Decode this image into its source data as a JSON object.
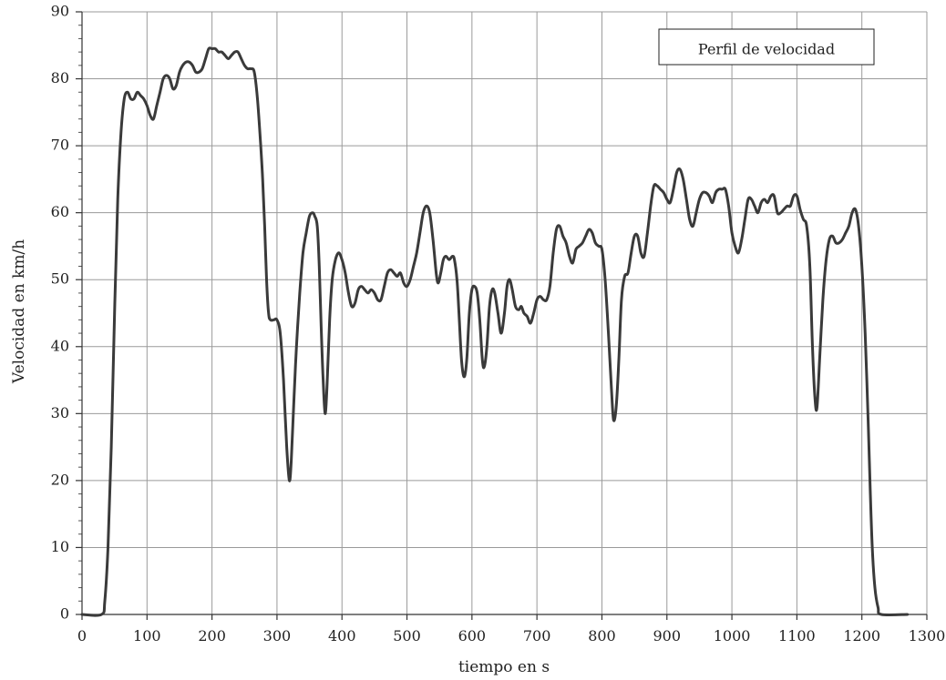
{
  "chart_data": {
    "type": "line",
    "xlabel": "tiempo en s",
    "ylabel": "Velocidad en km/h",
    "xlim": [
      0,
      1300
    ],
    "ylim": [
      0,
      90
    ],
    "xticks": [
      0,
      100,
      200,
      300,
      400,
      500,
      600,
      700,
      800,
      900,
      1000,
      1100,
      1200,
      1300
    ],
    "yticks": [
      0,
      10,
      20,
      30,
      40,
      50,
      60,
      70,
      80,
      90
    ],
    "grid": true,
    "legend_position": "top-right",
    "line_color": "#3a3a3a",
    "series": [
      {
        "name": "Perfil de velocidad",
        "points": [
          [
            0,
            0
          ],
          [
            30,
            0
          ],
          [
            35,
            2
          ],
          [
            40,
            10
          ],
          [
            45,
            25
          ],
          [
            50,
            45
          ],
          [
            55,
            62
          ],
          [
            60,
            72
          ],
          [
            65,
            77
          ],
          [
            70,
            78
          ],
          [
            75,
            77
          ],
          [
            80,
            77
          ],
          [
            85,
            78
          ],
          [
            90,
            77.5
          ],
          [
            95,
            77
          ],
          [
            100,
            76
          ],
          [
            105,
            74.5
          ],
          [
            110,
            74
          ],
          [
            115,
            76
          ],
          [
            120,
            78
          ],
          [
            125,
            80
          ],
          [
            130,
            80.5
          ],
          [
            135,
            80
          ],
          [
            140,
            78.5
          ],
          [
            145,
            79
          ],
          [
            150,
            81
          ],
          [
            155,
            82
          ],
          [
            160,
            82.5
          ],
          [
            165,
            82.5
          ],
          [
            170,
            82
          ],
          [
            175,
            81
          ],
          [
            180,
            81
          ],
          [
            185,
            81.5
          ],
          [
            190,
            83
          ],
          [
            195,
            84.5
          ],
          [
            200,
            84.5
          ],
          [
            205,
            84.5
          ],
          [
            210,
            84
          ],
          [
            215,
            84
          ],
          [
            220,
            83.5
          ],
          [
            225,
            83
          ],
          [
            230,
            83.5
          ],
          [
            235,
            84
          ],
          [
            240,
            84
          ],
          [
            245,
            83
          ],
          [
            250,
            82
          ],
          [
            255,
            81.5
          ],
          [
            260,
            81.5
          ],
          [
            265,
            81
          ],
          [
            270,
            77
          ],
          [
            275,
            70
          ],
          [
            278,
            65
          ],
          [
            281,
            58
          ],
          [
            284,
            50
          ],
          [
            287,
            45
          ],
          [
            290,
            44
          ],
          [
            295,
            44
          ],
          [
            300,
            44
          ],
          [
            305,
            42
          ],
          [
            310,
            35
          ],
          [
            315,
            25
          ],
          [
            319,
            20
          ],
          [
            322,
            23
          ],
          [
            326,
            32
          ],
          [
            330,
            40
          ],
          [
            335,
            48
          ],
          [
            340,
            54
          ],
          [
            345,
            57
          ],
          [
            350,
            59.5
          ],
          [
            355,
            60
          ],
          [
            358,
            59.5
          ],
          [
            362,
            58
          ],
          [
            365,
            52
          ],
          [
            368,
            43
          ],
          [
            371,
            35
          ],
          [
            374,
            30
          ],
          [
            377,
            34
          ],
          [
            381,
            44
          ],
          [
            385,
            50
          ],
          [
            390,
            53
          ],
          [
            395,
            54
          ],
          [
            400,
            53
          ],
          [
            405,
            51
          ],
          [
            410,
            48
          ],
          [
            415,
            46
          ],
          [
            420,
            46.5
          ],
          [
            425,
            48.5
          ],
          [
            430,
            49
          ],
          [
            435,
            48.5
          ],
          [
            440,
            48
          ],
          [
            445,
            48.5
          ],
          [
            450,
            48
          ],
          [
            455,
            47
          ],
          [
            460,
            47
          ],
          [
            465,
            49
          ],
          [
            470,
            51
          ],
          [
            475,
            51.5
          ],
          [
            480,
            51
          ],
          [
            485,
            50.5
          ],
          [
            490,
            51
          ],
          [
            495,
            49.5
          ],
          [
            500,
            49
          ],
          [
            505,
            50
          ],
          [
            510,
            52
          ],
          [
            515,
            54
          ],
          [
            520,
            57
          ],
          [
            525,
            60
          ],
          [
            530,
            61
          ],
          [
            535,
            60
          ],
          [
            540,
            56
          ],
          [
            545,
            51
          ],
          [
            548,
            49.5
          ],
          [
            552,
            51
          ],
          [
            556,
            53
          ],
          [
            560,
            53.5
          ],
          [
            565,
            53
          ],
          [
            570,
            53.5
          ],
          [
            573,
            53
          ],
          [
            577,
            50
          ],
          [
            580,
            45
          ],
          [
            584,
            38
          ],
          [
            588,
            35.5
          ],
          [
            592,
            38
          ],
          [
            596,
            45
          ],
          [
            600,
            48.5
          ],
          [
            604,
            49
          ],
          [
            608,
            48
          ],
          [
            612,
            44
          ],
          [
            616,
            38
          ],
          [
            619,
            37
          ],
          [
            623,
            40
          ],
          [
            627,
            46
          ],
          [
            631,
            48.5
          ],
          [
            635,
            48
          ],
          [
            640,
            45
          ],
          [
            645,
            42
          ],
          [
            650,
            45
          ],
          [
            654,
            49
          ],
          [
            658,
            50
          ],
          [
            662,
            48.5
          ],
          [
            667,
            46
          ],
          [
            672,
            45.5
          ],
          [
            676,
            46
          ],
          [
            680,
            45
          ],
          [
            685,
            44.5
          ],
          [
            690,
            43.5
          ],
          [
            695,
            45
          ],
          [
            700,
            47
          ],
          [
            705,
            47.5
          ],
          [
            710,
            47
          ],
          [
            715,
            47
          ],
          [
            720,
            49
          ],
          [
            725,
            54
          ],
          [
            730,
            57.5
          ],
          [
            735,
            58
          ],
          [
            740,
            56.5
          ],
          [
            745,
            55.5
          ],
          [
            750,
            53.5
          ],
          [
            755,
            52.5
          ],
          [
            760,
            54.5
          ],
          [
            765,
            55
          ],
          [
            770,
            55.5
          ],
          [
            775,
            56.5
          ],
          [
            780,
            57.5
          ],
          [
            785,
            57
          ],
          [
            790,
            55.5
          ],
          [
            795,
            55
          ],
          [
            800,
            54.5
          ],
          [
            805,
            50
          ],
          [
            810,
            42
          ],
          [
            815,
            33
          ],
          [
            818,
            29
          ],
          [
            822,
            31
          ],
          [
            826,
            38
          ],
          [
            830,
            47
          ],
          [
            835,
            50.5
          ],
          [
            840,
            51
          ],
          [
            845,
            54
          ],
          [
            850,
            56.5
          ],
          [
            855,
            56.5
          ],
          [
            860,
            54
          ],
          [
            865,
            53.5
          ],
          [
            870,
            57
          ],
          [
            875,
            61
          ],
          [
            880,
            64
          ],
          [
            885,
            64
          ],
          [
            890,
            63.5
          ],
          [
            895,
            63
          ],
          [
            900,
            62
          ],
          [
            905,
            61.5
          ],
          [
            910,
            63.5
          ],
          [
            915,
            66
          ],
          [
            920,
            66.5
          ],
          [
            925,
            65
          ],
          [
            930,
            62
          ],
          [
            935,
            59
          ],
          [
            940,
            58
          ],
          [
            945,
            60
          ],
          [
            950,
            62
          ],
          [
            955,
            63
          ],
          [
            960,
            63
          ],
          [
            965,
            62.5
          ],
          [
            970,
            61.5
          ],
          [
            975,
            63
          ],
          [
            980,
            63.5
          ],
          [
            985,
            63.5
          ],
          [
            990,
            63.5
          ],
          [
            995,
            61
          ],
          [
            1000,
            57
          ],
          [
            1005,
            55
          ],
          [
            1010,
            54
          ],
          [
            1015,
            56
          ],
          [
            1020,
            59
          ],
          [
            1025,
            62
          ],
          [
            1030,
            62
          ],
          [
            1035,
            61
          ],
          [
            1040,
            60
          ],
          [
            1045,
            61.5
          ],
          [
            1050,
            62
          ],
          [
            1055,
            61.5
          ],
          [
            1060,
            62.5
          ],
          [
            1065,
            62.5
          ],
          [
            1070,
            60
          ],
          [
            1075,
            60
          ],
          [
            1080,
            60.5
          ],
          [
            1085,
            61
          ],
          [
            1090,
            61
          ],
          [
            1095,
            62.5
          ],
          [
            1100,
            62.5
          ],
          [
            1105,
            60.5
          ],
          [
            1110,
            59
          ],
          [
            1115,
            58
          ],
          [
            1120,
            52
          ],
          [
            1124,
            40
          ],
          [
            1128,
            32
          ],
          [
            1131,
            31
          ],
          [
            1135,
            38
          ],
          [
            1140,
            47
          ],
          [
            1145,
            53
          ],
          [
            1150,
            56
          ],
          [
            1155,
            56.5
          ],
          [
            1160,
            55.5
          ],
          [
            1165,
            55.5
          ],
          [
            1170,
            56
          ],
          [
            1175,
            57
          ],
          [
            1180,
            58
          ],
          [
            1185,
            60
          ],
          [
            1190,
            60.5
          ],
          [
            1195,
            58
          ],
          [
            1200,
            52
          ],
          [
            1205,
            42
          ],
          [
            1210,
            28
          ],
          [
            1213,
            18
          ],
          [
            1216,
            10
          ],
          [
            1220,
            4
          ],
          [
            1225,
            1
          ],
          [
            1230,
            0
          ],
          [
            1270,
            0
          ]
        ]
      }
    ]
  }
}
